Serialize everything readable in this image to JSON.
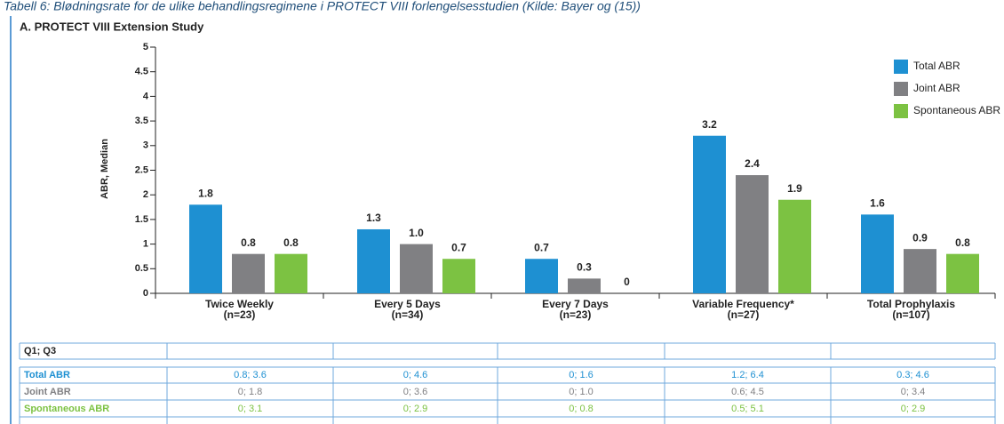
{
  "caption": "Tabell 6: Blødningsrate for de ulike behandlingsregimene i PROTECT VIII forlengelsesstudien (Kilde: Bayer og (15))",
  "chart_data": {
    "type": "bar",
    "title": "A. PROTECT VIII Extension Study",
    "y_label": "ABR, Median",
    "categories": [
      "Twice Weekly",
      "Every 5 Days",
      "Every 7 Days",
      "Variable Frequency*",
      "Total Prophylaxis"
    ],
    "category_notes": [
      "(n=23)",
      "(n=34)",
      "(n=23)",
      "(n=27)",
      "(n=107)"
    ],
    "series": [
      {
        "name": "Total ABR",
        "color": "#1e90d2",
        "values": [
          1.8,
          1.3,
          0.7,
          3.2,
          1.6
        ],
        "value_labels": [
          "1.8",
          "1.3",
          "0.7",
          "3.2",
          "1.6"
        ]
      },
      {
        "name": "Joint ABR",
        "color": "#808083",
        "values": [
          0.8,
          1.0,
          0.3,
          2.4,
          0.9
        ],
        "value_labels": [
          "0.8",
          "1.0",
          "0.3",
          "2.4",
          "0.9"
        ]
      },
      {
        "name": "Spontaneous ABR",
        "color": "#7cc242",
        "values": [
          0.8,
          0.7,
          0,
          1.9,
          0.8
        ],
        "value_labels": [
          "0.8",
          "0.7",
          "0",
          "1.9",
          "0.8"
        ]
      }
    ],
    "ylim": [
      0,
      5
    ],
    "yticks": [
      0,
      0.5,
      1,
      1.5,
      2,
      2.5,
      3,
      3.5,
      4,
      4.5,
      5
    ],
    "legend": "upper right"
  },
  "table": {
    "header": "Q1; Q3",
    "rows": [
      {
        "label": "Total ABR",
        "color": "#1e90d2",
        "cells": [
          "0.8; 3.6",
          "0; 4.6",
          "0; 1.6",
          "1.2; 6.4",
          "0.3; 4.6"
        ]
      },
      {
        "label": "Joint ABR",
        "color": "#808083",
        "cells": [
          "0; 1.8",
          "0; 3.6",
          "0; 1.0",
          "0.6; 4.5",
          "0; 3.4"
        ]
      },
      {
        "label": "Spontaneous ABR",
        "color": "#7cc242",
        "cells": [
          "0; 3.1",
          "0; 2.9",
          "0; 0.8",
          "0.5; 5.1",
          "0; 2.9"
        ]
      }
    ]
  }
}
